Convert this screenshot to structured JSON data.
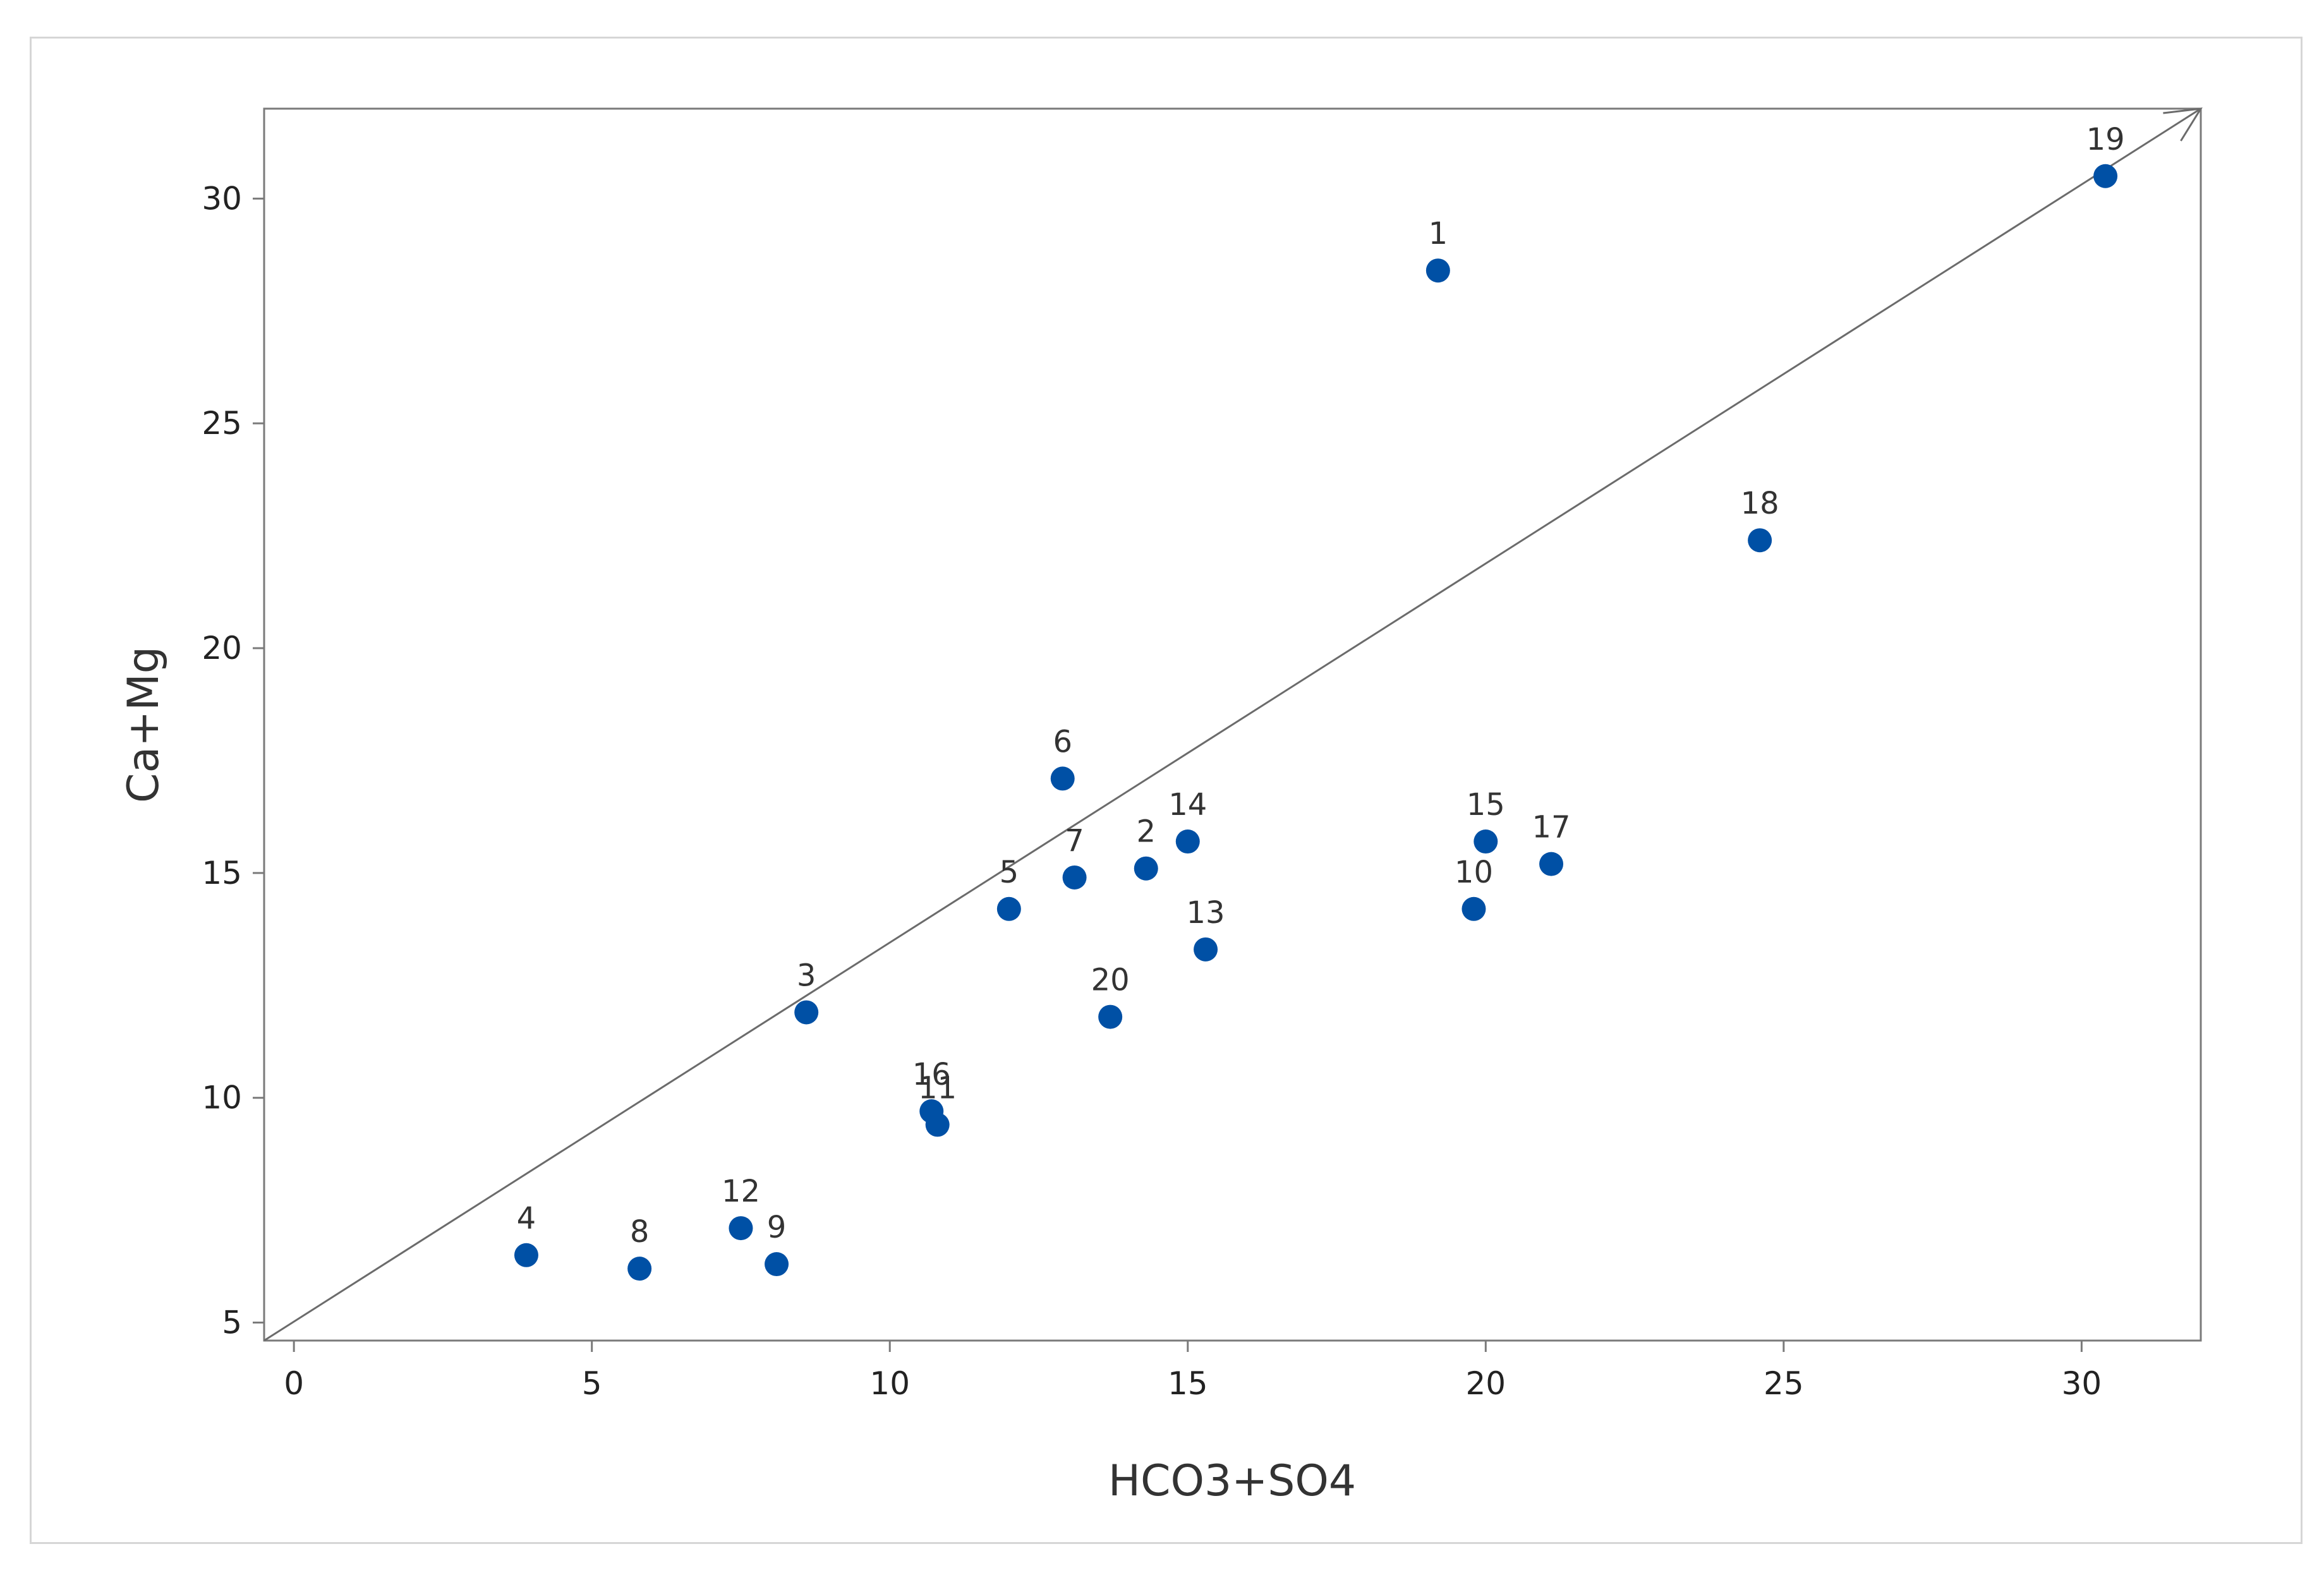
{
  "chart_data": {
    "type": "scatter",
    "title": "",
    "xlabel": "HCO3+SO4",
    "ylabel": "Ca+Mg",
    "xlim": [
      -0.5,
      32
    ],
    "ylim": [
      4.6,
      32
    ],
    "xticks": [
      0,
      5,
      10,
      15,
      20,
      25,
      30
    ],
    "yticks": [
      5,
      10,
      15,
      20,
      25,
      30
    ],
    "grid": false,
    "point_color": "#0050A5",
    "reference_line": {
      "description": "1:1 line",
      "from": [
        -0.5,
        4.6
      ],
      "to": [
        32,
        32
      ],
      "arrow_at_end": true,
      "color": "#6b6b6b"
    },
    "points": [
      {
        "label": "1",
        "x": 19.2,
        "y": 28.4
      },
      {
        "label": "2",
        "x": 14.3,
        "y": 15.1
      },
      {
        "label": "3",
        "x": 8.6,
        "y": 11.9
      },
      {
        "label": "4",
        "x": 3.9,
        "y": 6.5
      },
      {
        "label": "5",
        "x": 12.0,
        "y": 14.2
      },
      {
        "label": "6",
        "x": 12.9,
        "y": 17.1
      },
      {
        "label": "7",
        "x": 13.1,
        "y": 14.9
      },
      {
        "label": "8",
        "x": 5.8,
        "y": 6.2
      },
      {
        "label": "9",
        "x": 8.1,
        "y": 6.3
      },
      {
        "label": "10",
        "x": 19.8,
        "y": 14.2
      },
      {
        "label": "11",
        "x": 10.8,
        "y": 9.4
      },
      {
        "label": "12",
        "x": 7.5,
        "y": 7.1
      },
      {
        "label": "13",
        "x": 15.3,
        "y": 13.3
      },
      {
        "label": "14",
        "x": 15.0,
        "y": 15.7
      },
      {
        "label": "15",
        "x": 20.0,
        "y": 15.7
      },
      {
        "label": "16",
        "x": 10.7,
        "y": 9.7
      },
      {
        "label": "17",
        "x": 21.1,
        "y": 15.2
      },
      {
        "label": "18",
        "x": 24.6,
        "y": 22.4
      },
      {
        "label": "19",
        "x": 30.4,
        "y": 30.5
      },
      {
        "label": "20",
        "x": 13.7,
        "y": 11.8
      }
    ]
  }
}
